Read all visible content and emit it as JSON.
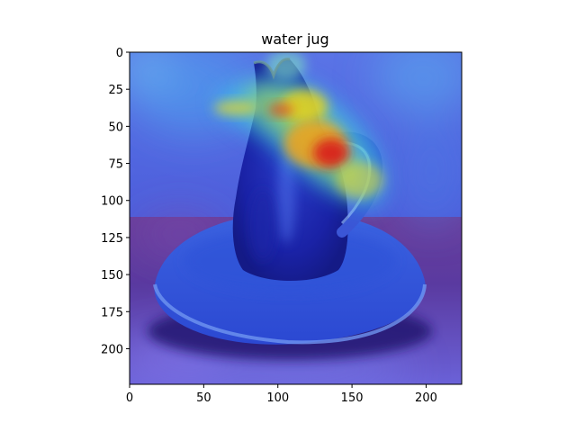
{
  "figure": {
    "title": "water jug"
  },
  "image": {
    "subject": "ceramic water jug on a plate",
    "overlay": "attention heatmap",
    "colormap": "jet"
  },
  "axes": {
    "xlim": [
      0,
      224
    ],
    "ylim": [
      224,
      0
    ],
    "x_ticks": [
      0,
      50,
      100,
      150,
      200
    ],
    "y_ticks": [
      0,
      25,
      50,
      75,
      100,
      125,
      150,
      175,
      200
    ]
  },
  "colors": {
    "base_blue": "#3a4fd8",
    "table_purple": "#5b3a9a",
    "hot_red": "#d81e1e",
    "warm_yellow": "#e8d21e",
    "cyan": "#36d6e8"
  }
}
